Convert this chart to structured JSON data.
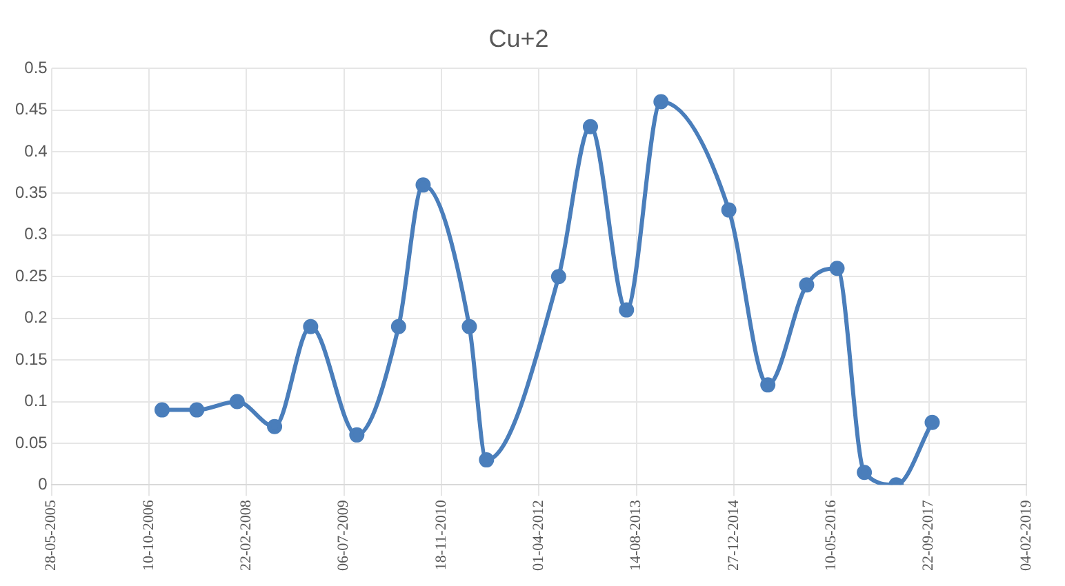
{
  "chart_data": {
    "type": "line",
    "title": "Cu+2",
    "x": [
      "2006-12-16",
      "2007-06-12",
      "2008-01-05",
      "2008-07-15",
      "2009-01-16",
      "2009-09-10",
      "2010-04-12",
      "2010-08-16",
      "2011-04-10",
      "2011-07-07",
      "2012-07-11",
      "2012-12-21",
      "2013-06-24",
      "2013-12-18",
      "2014-12-01",
      "2015-06-19",
      "2016-01-04",
      "2016-06-08",
      "2016-10-26",
      "2017-04-07",
      "2017-10-09"
    ],
    "series": [
      {
        "color": "#4a7ebb",
        "values": [
          0.09,
          0.09,
          0.1,
          0.07,
          0.19,
          0.06,
          0.19,
          0.36,
          0.19,
          0.03,
          0.25,
          0.43,
          0.21,
          0.46,
          0.33,
          0.12,
          0.24,
          0.26,
          0.015,
          0,
          0.075
        ]
      }
    ],
    "xlim": [
      "2005-05-28",
      "2019-02-04"
    ],
    "xticks": [
      {
        "value": "2005-05-28",
        "label": "28-05-2005"
      },
      {
        "value": "2006-10-10",
        "label": "10-10-2006"
      },
      {
        "value": "2008-02-22",
        "label": "22-02-2008"
      },
      {
        "value": "2009-07-06",
        "label": "06-07-2009"
      },
      {
        "value": "2010-11-18",
        "label": "18-11-2010"
      },
      {
        "value": "2012-04-01",
        "label": "01-04-2012"
      },
      {
        "value": "2013-08-14",
        "label": "14-08-2013"
      },
      {
        "value": "2014-12-27",
        "label": "27-12-2014"
      },
      {
        "value": "2016-05-10",
        "label": "10-05-2016"
      },
      {
        "value": "2017-09-22",
        "label": "22-09-2017"
      },
      {
        "value": "2019-02-04",
        "label": "04-02-2019"
      }
    ],
    "ylim": [
      0,
      0.5
    ],
    "yticks": [
      0,
      0.05,
      0.1,
      0.15,
      0.2,
      0.25,
      0.3,
      0.35,
      0.4,
      0.45,
      0.5
    ],
    "grid": true,
    "legend": false,
    "marker": "circle",
    "line_style": "solid"
  }
}
